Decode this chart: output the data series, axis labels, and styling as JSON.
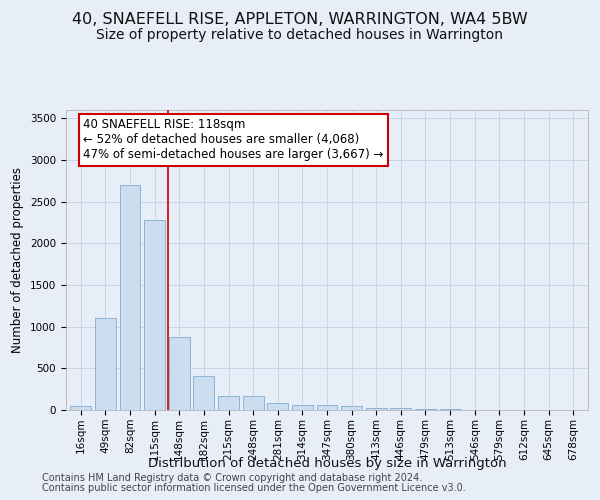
{
  "title": "40, SNAEFELL RISE, APPLETON, WARRINGTON, WA4 5BW",
  "subtitle": "Size of property relative to detached houses in Warrington",
  "xlabel": "Distribution of detached houses by size in Warrington",
  "ylabel": "Number of detached properties",
  "footnote1": "Contains HM Land Registry data © Crown copyright and database right 2024.",
  "footnote2": "Contains public sector information licensed under the Open Government Licence v3.0.",
  "bar_labels": [
    "16sqm",
    "49sqm",
    "82sqm",
    "115sqm",
    "148sqm",
    "182sqm",
    "215sqm",
    "248sqm",
    "281sqm",
    "314sqm",
    "347sqm",
    "380sqm",
    "413sqm",
    "446sqm",
    "479sqm",
    "513sqm",
    "546sqm",
    "579sqm",
    "612sqm",
    "645sqm",
    "678sqm"
  ],
  "bar_values": [
    50,
    1100,
    2700,
    2280,
    880,
    410,
    170,
    170,
    90,
    65,
    55,
    50,
    30,
    25,
    10,
    8,
    5,
    4,
    3,
    2,
    2
  ],
  "bar_color": "#ccddf0",
  "bar_edgecolor": "#8ab4d8",
  "bar_linewidth": 0.7,
  "vline_x": 3.55,
  "vline_color": "#cc0000",
  "vline_linewidth": 1.2,
  "annotation_text": "40 SNAEFELL RISE: 118sqm\n← 52% of detached houses are smaller (4,068)\n47% of semi-detached houses are larger (3,667) →",
  "ylim": [
    0,
    3600
  ],
  "yticks": [
    0,
    500,
    1000,
    1500,
    2000,
    2500,
    3000,
    3500
  ],
  "grid_color": "#ccd5e8",
  "bg_color": "#e8eef8",
  "box_facecolor": "#ffffff",
  "box_edgecolor": "#cc0000",
  "title_fontsize": 11.5,
  "subtitle_fontsize": 10,
  "xlabel_fontsize": 9.5,
  "ylabel_fontsize": 8.5,
  "annot_fontsize": 8.5,
  "tick_fontsize": 7.5,
  "footnote_fontsize": 7
}
